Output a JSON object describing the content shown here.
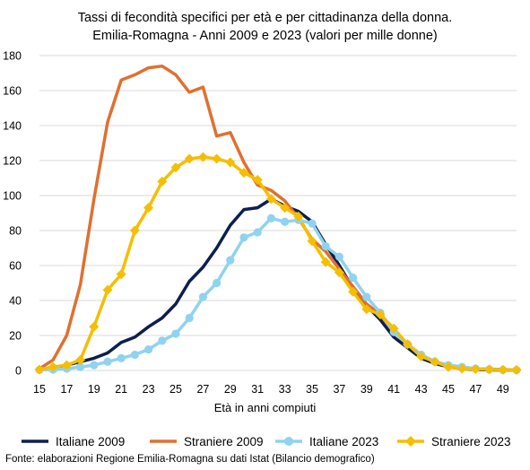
{
  "chart_data": {
    "type": "line",
    "title_lines": [
      "Tassi di fecondità specifici per età e per cittadinanza della donna.",
      "Emilia-Romagna - Anni 2009 e 2023 (valori per mille donne)"
    ],
    "xlabel": "Età in anni compiuti",
    "ylabel": "",
    "x": [
      15,
      16,
      17,
      18,
      19,
      20,
      21,
      22,
      23,
      24,
      25,
      26,
      27,
      28,
      29,
      30,
      31,
      32,
      33,
      34,
      35,
      36,
      37,
      38,
      39,
      40,
      41,
      42,
      43,
      44,
      45,
      46,
      47,
      48,
      49,
      50
    ],
    "x_ticks": [
      "15",
      "17",
      "19",
      "21",
      "23",
      "25",
      "27",
      "29",
      "31",
      "33",
      "35",
      "37",
      "39",
      "41",
      "43",
      "45",
      "47",
      "49"
    ],
    "ylim": [
      0,
      180
    ],
    "y_ticks": [
      "0",
      "20",
      "40",
      "60",
      "80",
      "100",
      "120",
      "140",
      "160",
      "180"
    ],
    "grid": true,
    "legend_position": "bottom",
    "series": [
      {
        "name": "Italiane 2009",
        "color": "#0d1f4f",
        "marker": "none",
        "values": [
          0.5,
          1.5,
          3,
          5,
          7,
          10,
          16,
          19,
          25,
          30,
          38,
          51,
          59,
          70,
          83,
          92,
          93,
          98,
          94,
          91,
          85,
          72,
          60,
          47,
          37,
          29,
          19,
          13,
          7,
          4,
          2,
          1,
          0.5,
          0.3,
          0.2,
          0.1
        ]
      },
      {
        "name": "Straniere 2009",
        "color": "#e07030",
        "marker": "none",
        "values": [
          1,
          6,
          20,
          49,
          98,
          142,
          166,
          169,
          173,
          174,
          169,
          159,
          162,
          134,
          136,
          119,
          106,
          103,
          97,
          87,
          75,
          68,
          58,
          48,
          38,
          32,
          22,
          15,
          9,
          5,
          3,
          2,
          1,
          0.8,
          0.5,
          0.3
        ]
      },
      {
        "name": "Italiane 2023",
        "color": "#8fd3f0",
        "marker": "circle",
        "values": [
          0.3,
          0.5,
          1,
          2,
          3,
          5,
          7,
          9,
          12,
          17,
          21,
          30,
          42,
          50,
          63,
          76,
          79,
          87,
          85,
          86,
          84,
          71,
          65,
          53,
          42,
          33,
          22,
          15,
          9,
          5,
          3,
          2,
          1,
          0.6,
          0.3,
          0.2
        ]
      },
      {
        "name": "Straniere 2023",
        "color": "#f5be00",
        "marker": "diamond",
        "values": [
          0.5,
          2,
          3,
          6,
          25,
          46,
          55,
          80,
          93,
          108,
          116,
          121,
          122,
          121,
          119,
          113,
          109,
          98,
          93,
          88,
          74,
          62,
          56,
          45,
          35,
          32,
          24,
          15,
          8,
          5,
          2,
          1,
          0.8,
          0.6,
          0.4,
          0.3
        ]
      }
    ],
    "source": "Fonte: elaborazioni Regione Emilia-Romagna su dati Istat (Bilancio demografico)"
  }
}
